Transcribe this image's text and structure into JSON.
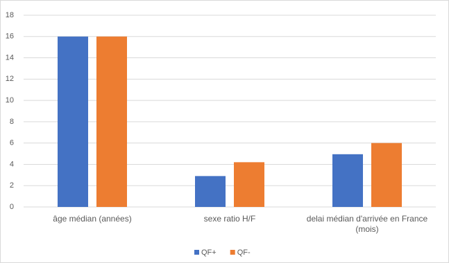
{
  "chart_data": {
    "type": "bar",
    "categories": [
      "âge médian (années)",
      "sexe ratio H/F",
      "delai médian d'arrivée en France (mois)"
    ],
    "series": [
      {
        "name": "QF+",
        "color": "#4472c4",
        "values": [
          16,
          2.9,
          4.95
        ]
      },
      {
        "name": "QF-",
        "color": "#ed7d31",
        "values": [
          16,
          4.2,
          6
        ]
      }
    ],
    "ylim": [
      0,
      18
    ],
    "yticks": [
      0,
      2,
      4,
      6,
      8,
      10,
      12,
      14,
      16,
      18
    ],
    "grid": true,
    "legend": "bottom"
  }
}
